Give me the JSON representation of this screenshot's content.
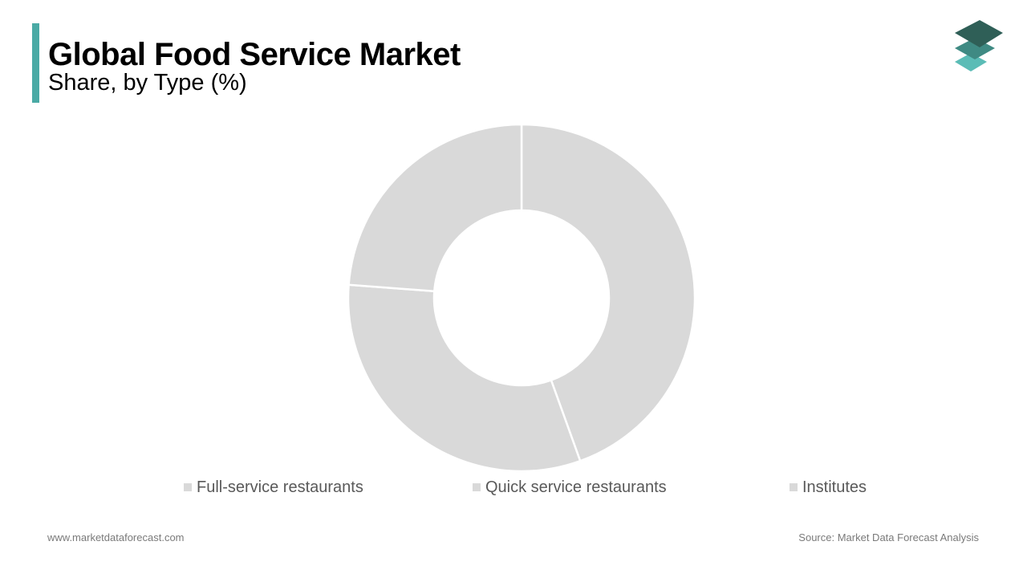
{
  "header": {
    "title": "Global Food Service Market",
    "subtitle": "Share, by Type (%)"
  },
  "logo": {
    "icon": "stacked-layers-logo-icon",
    "colors": [
      "#2f5f57",
      "#3f8a83",
      "#5bbcb6"
    ]
  },
  "chart_data": {
    "type": "pie",
    "donut": true,
    "categories": [
      "Full-service restaurants",
      "Quick service restaurants",
      "Institutes"
    ],
    "values": [
      44.5,
      31.7,
      23.8
    ],
    "colors": [
      "#d9d9d9",
      "#d9d9d9",
      "#d9d9d9"
    ],
    "title": "",
    "legend_position": "bottom",
    "data_labels_shown": false
  },
  "footer": {
    "website": "www.marketdataforecast.com",
    "source": "Source: Market Data Forecast Analysis"
  }
}
